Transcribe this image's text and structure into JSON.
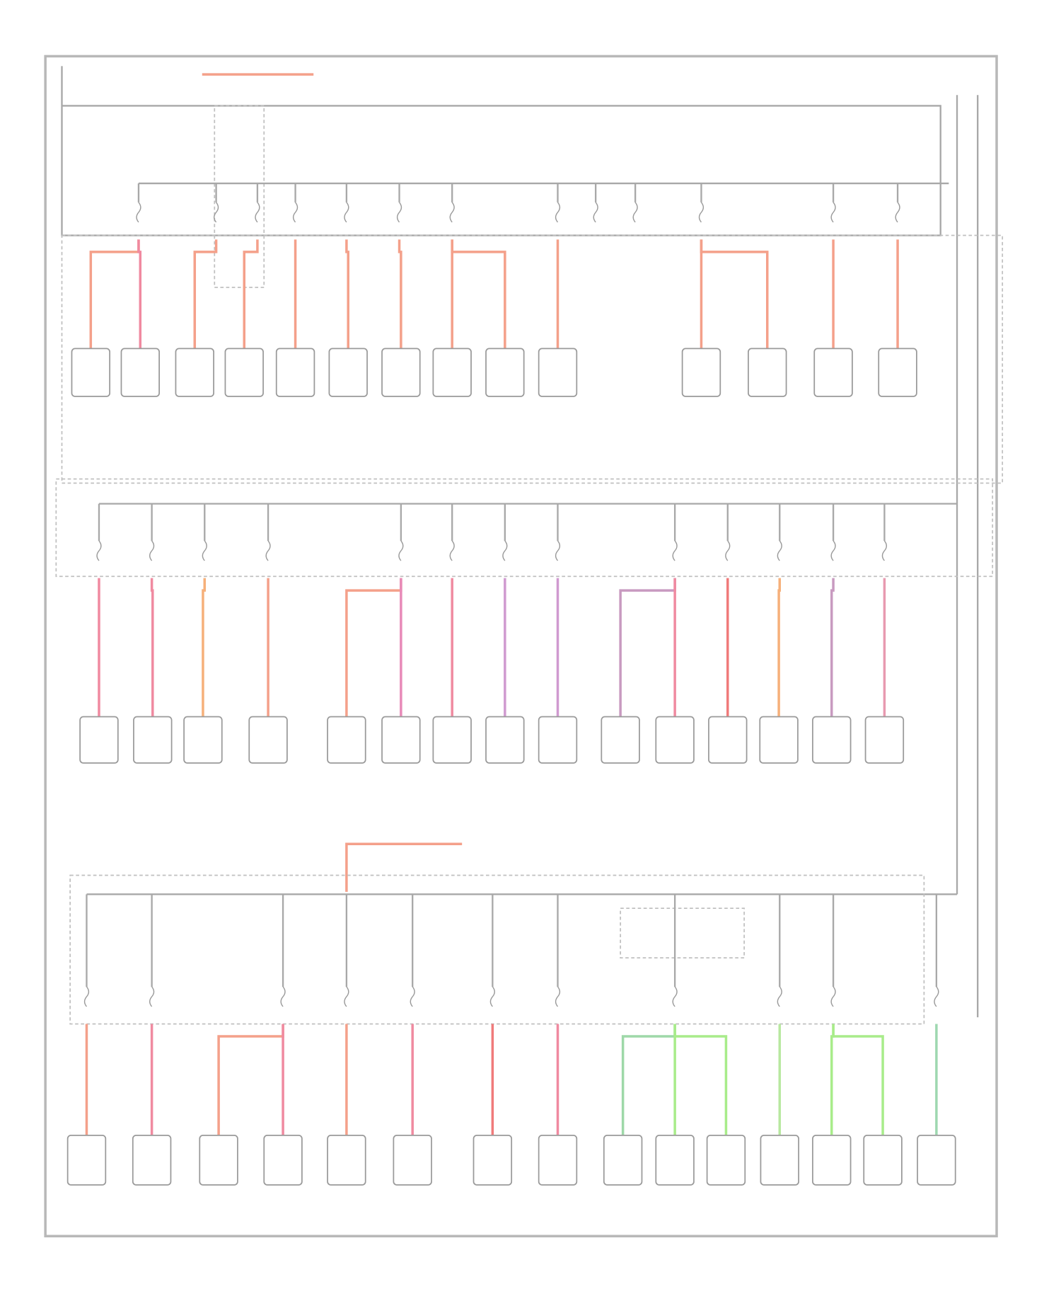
{
  "diagram": {}
}
